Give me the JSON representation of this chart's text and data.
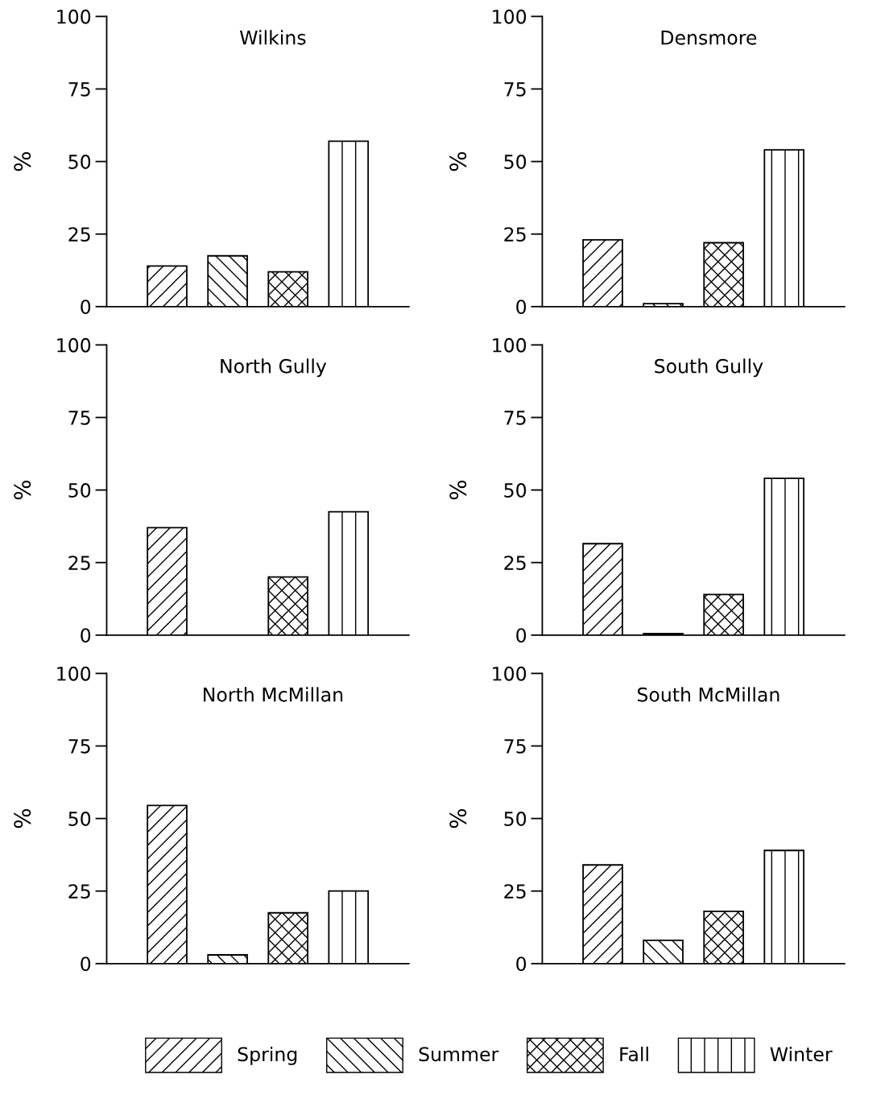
{
  "chart_data": [
    {
      "type": "bar",
      "title": "Wilkins",
      "ylabel": "%",
      "categories": [
        null
      ],
      "ylim": [
        0,
        100
      ],
      "yticks": [
        0,
        25,
        50,
        75,
        100
      ],
      "grid": false,
      "legend": "bottom",
      "series": [
        {
          "name": "Spring",
          "color": "#000000",
          "values": [
            14
          ]
        },
        {
          "name": "Summer",
          "color": "#000000",
          "values": [
            17.5
          ]
        },
        {
          "name": "Fall",
          "color": "#000000",
          "values": [
            12
          ]
        },
        {
          "name": "Winter",
          "color": "#000000",
          "values": [
            57
          ]
        }
      ]
    },
    {
      "type": "bar",
      "title": "Densmore",
      "ylabel": "%",
      "categories": [
        null
      ],
      "ylim": [
        0,
        100
      ],
      "yticks": [
        0,
        25,
        50,
        75,
        100
      ],
      "grid": false,
      "legend": false,
      "series": [
        {
          "color": "#000000",
          "values": [
            23
          ]
        },
        {
          "color": "#000000",
          "values": [
            1
          ]
        },
        {
          "color": "#000000",
          "values": [
            22
          ]
        },
        {
          "color": "#000000",
          "values": [
            54
          ]
        }
      ]
    },
    {
      "type": "bar",
      "title": "North Gully",
      "ylabel": "%",
      "categories": [
        null
      ],
      "ylim": [
        0,
        100
      ],
      "yticks": [
        0,
        25,
        50,
        75,
        100
      ],
      "grid": false,
      "legend": false,
      "series": [
        {
          "color": "#000000",
          "values": [
            37
          ]
        },
        {
          "color": "#000000",
          "values": [
            0
          ]
        },
        {
          "color": "#000000",
          "values": [
            20
          ]
        },
        {
          "color": "#000000",
          "values": [
            42.5
          ]
        }
      ]
    },
    {
      "type": "bar",
      "title": "South Gully",
      "ylabel": "%",
      "categories": [
        null
      ],
      "ylim": [
        0,
        100
      ],
      "yticks": [
        0,
        25,
        50,
        75,
        100
      ],
      "grid": false,
      "legend": false,
      "series": [
        {
          "color": "#000000",
          "values": [
            31.5
          ]
        },
        {
          "color": "#000000",
          "values": [
            0.5
          ]
        },
        {
          "color": "#000000",
          "values": [
            14
          ]
        },
        {
          "color": "#000000",
          "values": [
            54
          ]
        }
      ]
    },
    {
      "type": "bar",
      "title": "North McMillan",
      "ylabel": "%",
      "categories": [
        null
      ],
      "ylim": [
        0,
        100
      ],
      "yticks": [
        0,
        25,
        50,
        75,
        100
      ],
      "grid": false,
      "legend": false,
      "series": [
        {
          "color": "#000000",
          "values": [
            54.5
          ]
        },
        {
          "color": "#000000",
          "values": [
            3
          ]
        },
        {
          "color": "#000000",
          "values": [
            17.5
          ]
        },
        {
          "color": "#000000",
          "values": [
            25
          ]
        }
      ]
    },
    {
      "type": "bar",
      "title": "South McMillan",
      "ylabel": "%",
      "categories": [
        null
      ],
      "ylim": [
        0,
        100
      ],
      "yticks": [
        0,
        25,
        50,
        75,
        100
      ],
      "grid": false,
      "series": [
        {
          "color": "#000000",
          "values": [
            34
          ]
        },
        {
          "color": "#000000",
          "values": [
            8
          ]
        },
        {
          "color": "#000000",
          "values": [
            18
          ]
        },
        {
          "color": "#000000",
          "values": [
            39
          ]
        }
      ]
    }
  ]
}
